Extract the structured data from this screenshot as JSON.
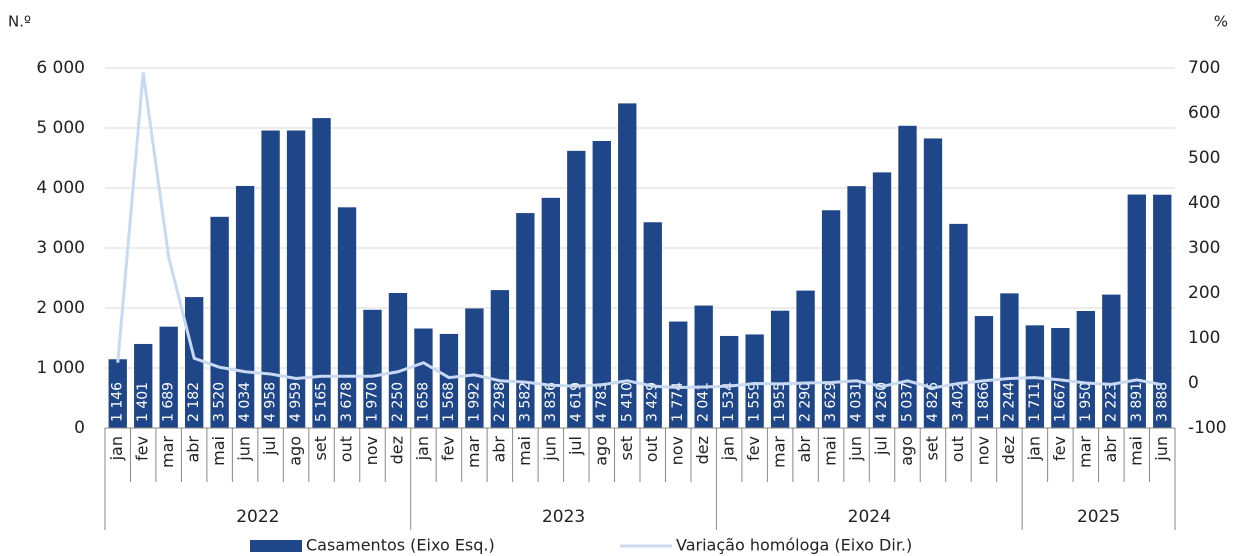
{
  "chart_data": {
    "type": "bar-line",
    "y_unit": "N.º",
    "y2_unit": "%",
    "groups": [
      {
        "name": "2022",
        "categories": [
          "jan",
          "fev",
          "mar",
          "abr",
          "mai",
          "jun",
          "jul",
          "ago",
          "set",
          "out",
          "nov",
          "dez"
        ]
      },
      {
        "name": "2023",
        "categories": [
          "jan",
          "fev",
          "mar",
          "abr",
          "mai",
          "jun",
          "jul",
          "ago",
          "set",
          "out",
          "nov",
          "dez"
        ]
      },
      {
        "name": "2024",
        "categories": [
          "jan",
          "fev",
          "mar",
          "abr",
          "mai",
          "jun",
          "jul",
          "ago",
          "set",
          "out",
          "nov",
          "dez"
        ]
      },
      {
        "name": "2025",
        "categories": [
          "jan",
          "fev",
          "mar",
          "abr",
          "mai",
          "jun"
        ]
      }
    ],
    "series": [
      {
        "name": "Casamentos (Eixo Esq.)",
        "type": "bar",
        "color": "#1f4688",
        "values": [
          1146,
          1401,
          1689,
          2182,
          3520,
          4034,
          4958,
          4959,
          5165,
          3678,
          1970,
          2250,
          1658,
          1568,
          1992,
          2298,
          3582,
          3836,
          4619,
          4783,
          5410,
          3429,
          1774,
          2041,
          1534,
          1559,
          1955,
          2290,
          3629,
          4031,
          4260,
          5037,
          4826,
          3402,
          1866,
          2244,
          1711,
          1667,
          1950,
          2223,
          3891,
          3888
        ],
        "value_labels": [
          "1 146",
          "1 401",
          "1 689",
          "2 182",
          "3 520",
          "4 034",
          "4 958",
          "4 959",
          "5 165",
          "3 678",
          "1 970",
          "2 250",
          "1 658",
          "1 568",
          "1 992",
          "2 298",
          "3 582",
          "3 836",
          "4 619",
          "4 783",
          "5 410",
          "3 429",
          "1 774",
          "2 041",
          "1 534",
          "1 559",
          "1 955",
          "2 290",
          "3 629",
          "4 031",
          "4 260",
          "5 037",
          "4 826",
          "3 402",
          "1 866",
          "2 244",
          "1 711",
          "1 667",
          "1 950",
          "2 223",
          "3 891",
          "3 888"
        ]
      },
      {
        "name": "Variação homóloga (Eixo Dir.)",
        "type": "line",
        "axis": "y2",
        "color": "#c9d9f2",
        "values": [
          45,
          690,
          280,
          55,
          35,
          25,
          20,
          10,
          15,
          15,
          15,
          25,
          45,
          12,
          18,
          5,
          2,
          -5,
          -7,
          -4,
          5,
          -7,
          -10,
          -9,
          -7,
          -1,
          -2,
          0,
          1,
          5,
          -8,
          5,
          -11,
          -1,
          5,
          10,
          12,
          7,
          0,
          -3,
          7,
          -4
        ]
      }
    ],
    "ylim": [
      0,
      6000
    ],
    "yticks": [
      0,
      {
        "value": 1000,
        "label": "1 000"
      },
      {
        "value": 2000,
        "label": "2 000"
      },
      {
        "value": 3000,
        "label": "3 000"
      },
      {
        "value": 4000,
        "label": "4 000"
      },
      {
        "value": 5000,
        "label": "5 000"
      },
      {
        "value": 6000,
        "label": "6 000"
      }
    ],
    "y2lim": [
      -100,
      700
    ],
    "y2ticks": [
      -100,
      0,
      100,
      200,
      300,
      400,
      500,
      600,
      700
    ],
    "grid": true
  }
}
